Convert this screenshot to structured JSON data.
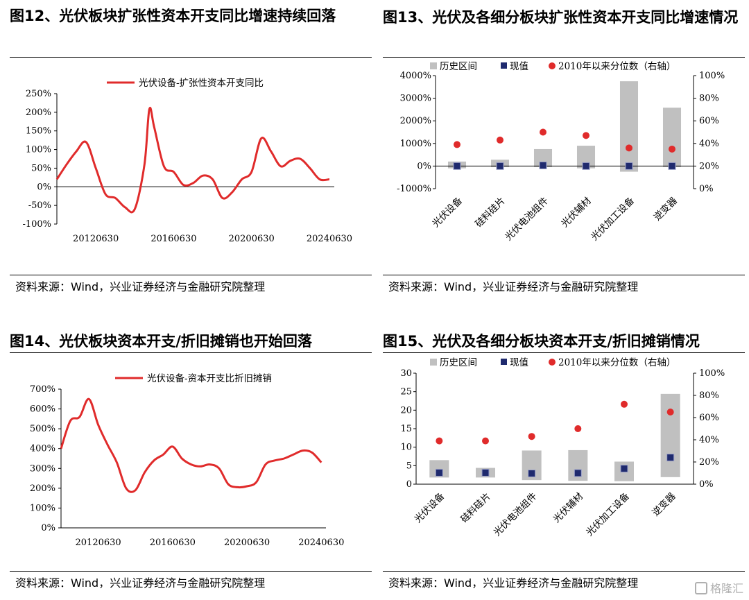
{
  "watermark": "格隆汇",
  "charts": [
    {
      "title": "图12、光伏板块扩张性资本开支同比增速持续回落",
      "source": "资料来源：Wind，兴业证券经济与金融研究院整理",
      "type": "line",
      "legend": [
        "光伏设备-扩张性资本开支同比"
      ],
      "y_ticks": [
        "250%",
        "200%",
        "150%",
        "100%",
        "50%",
        "0%",
        "-50%",
        "-100%"
      ],
      "x_ticks": [
        "20120630",
        "20160630",
        "20200630",
        "20240630"
      ],
      "ylim": [
        -100,
        250
      ],
      "line_color": "#e02b2b",
      "x": [
        2010.5,
        2011.0,
        2011.5,
        2012.0,
        2012.5,
        2013.0,
        2013.5,
        2014.0,
        2014.5,
        2015.0,
        2015.25,
        2015.5,
        2016.0,
        2016.5,
        2017.0,
        2017.5,
        2018.0,
        2018.5,
        2019.0,
        2019.5,
        2020.0,
        2020.5,
        2021.0,
        2021.5,
        2022.0,
        2022.5,
        2023.0,
        2023.5,
        2024.0,
        2024.5
      ],
      "values": [
        20,
        60,
        95,
        120,
        50,
        -20,
        -30,
        -55,
        -60,
        60,
        208,
        160,
        55,
        40,
        5,
        10,
        30,
        20,
        -30,
        -15,
        20,
        40,
        130,
        95,
        55,
        70,
        75,
        50,
        20,
        20
      ]
    },
    {
      "title": "图13、光伏及各细分板块扩张性资本开支同比增速情况",
      "source": "资料来源：Wind，兴业证券经济与金融研究院整理",
      "type": "bar",
      "legend": [
        "历史区间",
        "现值",
        "2010年以来分位数（右轴）"
      ],
      "y_ticks": [
        "4000%",
        "3000%",
        "2000%",
        "1000%",
        "0%",
        "-1000%"
      ],
      "y2_ticks": [
        "100%",
        "80%",
        "60%",
        "40%",
        "20%",
        "0%"
      ],
      "ylim": [
        -1000,
        4000
      ],
      "y2lim": [
        0,
        100
      ],
      "categories": [
        "光伏设备",
        "硅料硅片",
        "光伏电池组件",
        "光伏辅材",
        "光伏加工设备",
        "逆变器"
      ],
      "range_low": [
        -100,
        -50,
        -50,
        -100,
        -250,
        -50
      ],
      "range_high": [
        200,
        280,
        750,
        900,
        3750,
        2580
      ],
      "current": [
        0,
        0,
        30,
        0,
        0,
        0
      ],
      "percentile": [
        39,
        43,
        50,
        47,
        36,
        35
      ],
      "colors": {
        "range": "#c0c0c0",
        "current": "#1f2a6e",
        "percentile": "#e02b2b"
      }
    },
    {
      "title": "图14、光伏板块资本开支/折旧摊销也开始回落",
      "source": "资料来源：Wind，兴业证券经济与金融研究院整理",
      "type": "line",
      "legend": [
        "光伏设备-资本开支比折旧摊销"
      ],
      "y_ticks": [
        "700%",
        "600%",
        "500%",
        "400%",
        "300%",
        "200%",
        "100%",
        "0%"
      ],
      "x_ticks": [
        "20120630",
        "20160630",
        "20200630",
        "20240630"
      ],
      "ylim": [
        0,
        700
      ],
      "line_color": "#e02b2b",
      "x": [
        2010.5,
        2011.0,
        2011.5,
        2012.0,
        2012.5,
        2013.0,
        2013.5,
        2014.0,
        2014.5,
        2015.0,
        2015.5,
        2016.0,
        2016.5,
        2017.0,
        2017.5,
        2018.0,
        2018.5,
        2019.0,
        2019.5,
        2020.0,
        2020.5,
        2021.0,
        2021.5,
        2022.0,
        2022.5,
        2023.0,
        2023.5,
        2024.0,
        2024.5
      ],
      "values": [
        400,
        540,
        560,
        650,
        520,
        420,
        330,
        200,
        190,
        280,
        340,
        370,
        410,
        350,
        320,
        310,
        320,
        300,
        220,
        205,
        210,
        230,
        320,
        340,
        350,
        370,
        390,
        380,
        330
      ]
    },
    {
      "title": "图15、光伏及各细分板块资本开支/折旧摊销情况",
      "source": "资料来源：Wind，兴业证券经济与金融研究院整理",
      "type": "bar",
      "legend": [
        "历史区间",
        "现值",
        "2010年以来分位数（右轴）"
      ],
      "y_ticks": [
        "30",
        "25",
        "20",
        "15",
        "10",
        "5",
        "0"
      ],
      "y2_ticks": [
        "100%",
        "80%",
        "60%",
        "40%",
        "20%",
        "0%"
      ],
      "ylim": [
        0,
        30
      ],
      "y2lim": [
        0,
        100
      ],
      "categories": [
        "光伏设备",
        "硅料硅片",
        "光伏电池组件",
        "光伏辅材",
        "光伏加工设备",
        "逆变器"
      ],
      "range_low": [
        1.8,
        1.8,
        1.1,
        0.9,
        0.8,
        1.9
      ],
      "range_high": [
        6.5,
        4.4,
        9.1,
        9.2,
        6.1,
        24.4
      ],
      "current": [
        3.1,
        3.1,
        2.9,
        3.0,
        4.2,
        7.2
      ],
      "percentile": [
        39,
        39,
        43,
        50,
        72,
        65
      ],
      "colors": {
        "range": "#c0c0c0",
        "current": "#1f2a6e",
        "percentile": "#e02b2b"
      }
    }
  ]
}
